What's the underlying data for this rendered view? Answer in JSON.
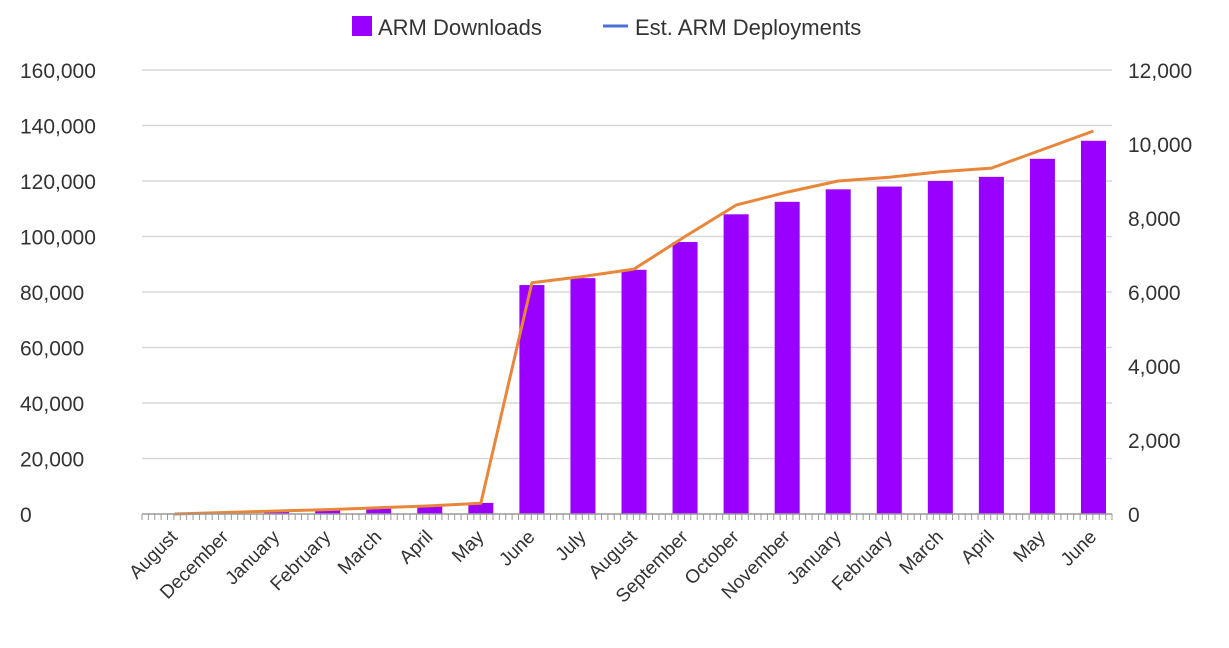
{
  "chart_data": {
    "type": "bar",
    "categories": [
      "August",
      "December",
      "January",
      "February",
      "March",
      "April",
      "May",
      "June",
      "July",
      "August",
      "September",
      "October",
      "November",
      "January",
      "February",
      "March",
      "April",
      "May",
      "June"
    ],
    "series": [
      {
        "name": "ARM Downloads",
        "type": "bar",
        "axis": "left",
        "color": "#9900ff",
        "values": [
          200,
          600,
          1000,
          1500,
          2200,
          3000,
          4000,
          82500,
          85000,
          88000,
          98000,
          108000,
          112500,
          117000,
          118000,
          120000,
          121500,
          128000,
          134500
        ]
      },
      {
        "name": "Est. ARM Deployments",
        "type": "line",
        "axis": "right",
        "color": "#e8863a",
        "legend_color": "#4a6fd8",
        "values": [
          0,
          40,
          80,
          120,
          170,
          220,
          290,
          6250,
          6420,
          6620,
          7500,
          8350,
          8700,
          9000,
          9100,
          9250,
          9350,
          9850,
          10350
        ]
      }
    ],
    "y_left": {
      "ylim": [
        0,
        160000
      ],
      "ticks": [
        "0",
        "20,000",
        "40,000",
        "60,000",
        "80,000",
        "100,000",
        "120,000",
        "140,000",
        "160,000"
      ]
    },
    "y_right": {
      "ylim": [
        0,
        12000
      ],
      "ticks": [
        "0",
        "2,000",
        "4,000",
        "6,000",
        "8,000",
        "10,000",
        "12,000"
      ]
    },
    "title": "",
    "xlabel": "",
    "ylabel": "",
    "grid": true,
    "legend": "top-center"
  }
}
